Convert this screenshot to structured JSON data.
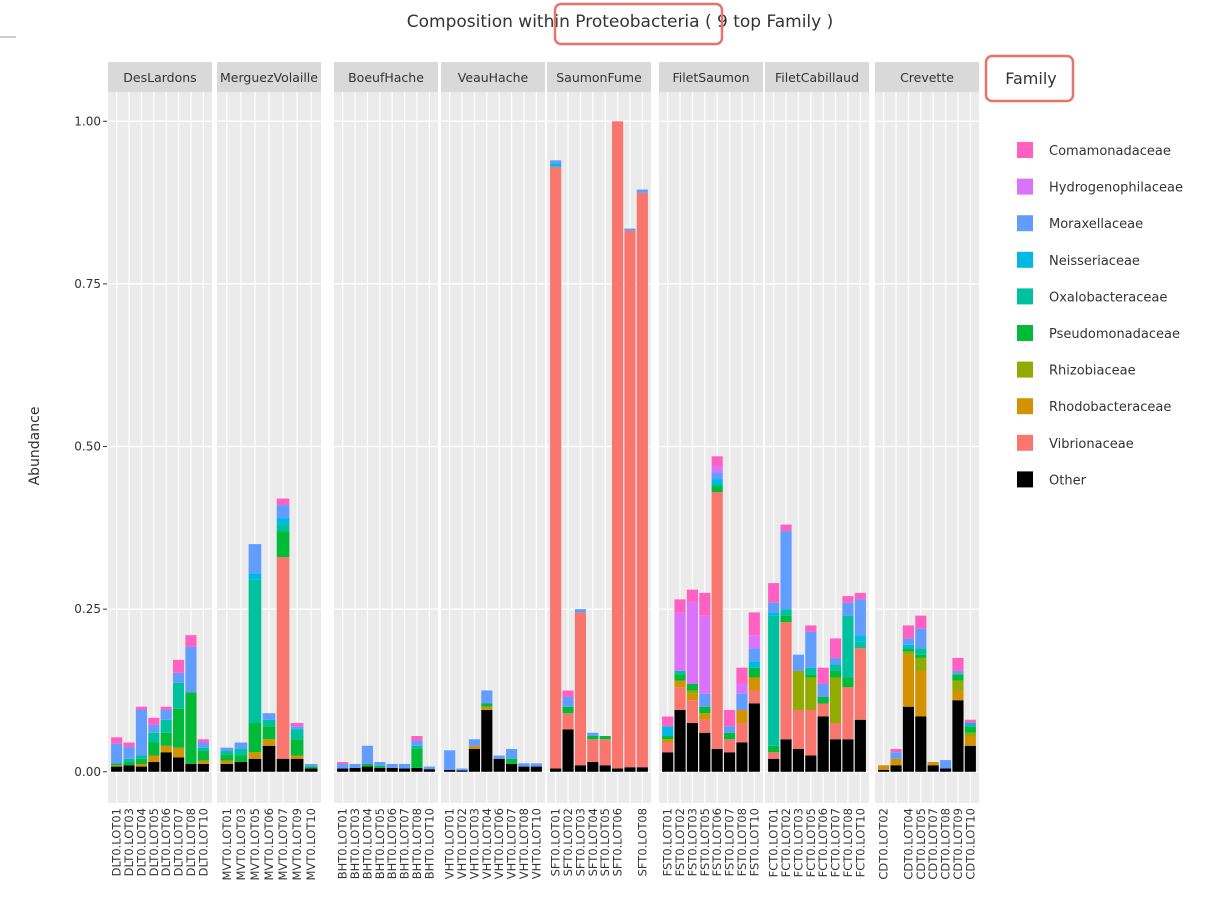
{
  "chart_data": {
    "type": "bar",
    "stacked": true,
    "title": "Composition within Proteobacteria ( 9 top Family )",
    "ylabel": "Abundance",
    "legend_title": "Family",
    "ylim": [
      -0.048,
      1.045
    ],
    "yticks": [
      {
        "value": 0,
        "label": "0.00"
      },
      {
        "value": 0.25,
        "label": "0.25"
      },
      {
        "value": 0.5,
        "label": "0.50"
      },
      {
        "value": 0.75,
        "label": "0.75"
      },
      {
        "value": 1,
        "label": "1.00"
      }
    ],
    "grid": true,
    "facets": [
      {
        "title": "DesLardons",
        "categories": [
          "DLT0.LOT01",
          "DLT0.LOT03",
          "DLT0.LOT04",
          "DLT0.LOT05",
          "DLT0.LOT06",
          "DLT0.LOT07",
          "DLT0.LOT08",
          "DLT0.LOT10"
        ]
      },
      {
        "title": "MerguezVolaille",
        "categories": [
          "MVT0.LOT01",
          "MVT0.LOT03",
          "MVT0.LOT05",
          "MVT0.LOT06",
          "MVT0.LOT07",
          "MVT0.LOT09",
          "MVT0.LOT10"
        ]
      },
      {
        "title": "BoeufHache",
        "categories": [
          "BHT0.LOT01",
          "BHT0.LOT03",
          "BHT0.LOT04",
          "BHT0.LOT05",
          "BHT0.LOT06",
          "BHT0.LOT07",
          "BHT0.LOT08",
          "BHT0.LOT10"
        ]
      },
      {
        "title": "VeauHache",
        "categories": [
          "VHT0.LOT01",
          "VHT0.LOT02",
          "VHT0.LOT03",
          "VHT0.LOT04",
          "VHT0.LOT06",
          "VHT0.LOT07",
          "VHT0.LOT08",
          "VHT0.LOT10"
        ]
      },
      {
        "title": "SaumonFume",
        "categories": [
          "SFT0.LOT01",
          "SFT0.LOT02",
          "SFT0.LOT03",
          "SFT0.LOT04",
          "SFT0.LOT05",
          "SFT0.LOT06",
          null,
          "SFT0.LOT08"
        ]
      },
      {
        "title": "FiletSaumon",
        "categories": [
          "FST0.LOT01",
          "FST0.LOT02",
          "FST0.LOT03",
          "FST0.LOT05",
          "FST0.LOT06",
          "FST0.LOT07",
          "FST0.LOT08",
          "FST0.LOT10"
        ]
      },
      {
        "title": "FiletCabillaud",
        "categories": [
          "FCT0.LOT01",
          "FCT0.LOT02",
          "FCT0.LOT03",
          "FCT0.LOT05",
          "FCT0.LOT06",
          "FCT0.LOT07",
          "FCT0.LOT08",
          "FCT0.LOT10"
        ]
      },
      {
        "title": "Crevette",
        "categories": [
          "CDT0.LOT02",
          null,
          "CDT0.LOT04",
          "CDT0.LOT05",
          "CDT0.LOT07",
          "CDT0.LOT08",
          "CDT0.LOT09",
          "CDT0.LOT10"
        ]
      }
    ],
    "series": [
      {
        "name": "Comamonadaceae",
        "color": "#FF61C3",
        "values": [
          [
            0.01,
            0.007,
            0.005,
            0.011,
            0.005,
            0.02,
            0.018,
            0.005
          ],
          [
            0,
            0,
            0,
            0,
            0.01,
            0.005,
            0
          ],
          [
            0.003,
            0,
            0,
            0,
            0,
            0,
            0.007,
            0
          ],
          [
            0,
            0,
            0,
            0,
            0,
            0,
            0,
            0
          ],
          [
            0,
            0.01,
            0,
            0,
            0,
            0,
            0,
            0
          ],
          [
            0.015,
            0.02,
            0.02,
            0.035,
            0.015,
            0.025,
            0.025,
            0.035
          ],
          [
            0.03,
            0.01,
            0,
            0.01,
            0.025,
            0.03,
            0.01,
            0.01
          ],
          [
            0,
            0.005,
            0.02,
            0.02,
            0,
            0,
            0.02,
            0.005
          ]
        ]
      },
      {
        "name": "Hydrogenophilaceae",
        "color": "#DB72FB",
        "values": [
          [
            0,
            0,
            0,
            0,
            0,
            0,
            0,
            0
          ],
          [
            0,
            0,
            0,
            0,
            0,
            0,
            0
          ],
          [
            0,
            0,
            0,
            0,
            0,
            0,
            0,
            0
          ],
          [
            0,
            0,
            0,
            0,
            0,
            0,
            0,
            0
          ],
          [
            0,
            0,
            0,
            0,
            0,
            0,
            0,
            0
          ],
          [
            0,
            0.09,
            0.125,
            0.12,
            0.01,
            0,
            0.015,
            0.02
          ],
          [
            0,
            0,
            0,
            0,
            0,
            0,
            0,
            0
          ],
          [
            0,
            0,
            0,
            0,
            0,
            0,
            0,
            0
          ]
        ]
      },
      {
        "name": "Moraxellaceae",
        "color": "#619CFF",
        "values": [
          [
            0.03,
            0.018,
            0.07,
            0.012,
            0.015,
            0.015,
            0.07,
            0.008
          ],
          [
            0.005,
            0.01,
            0.045,
            0.01,
            0.02,
            0.005,
            0.004
          ],
          [
            0.007,
            0.006,
            0.028,
            0.006,
            0.006,
            0.007,
            0.008,
            0.004
          ],
          [
            0.03,
            0.003,
            0.01,
            0.02,
            0.005,
            0.015,
            0.005,
            0.005
          ],
          [
            0.005,
            0.015,
            0.005,
            0.005,
            0,
            0,
            0.003,
            0.005
          ],
          [
            0,
            0,
            0,
            0.02,
            0.01,
            0.01,
            0.025,
            0.02
          ],
          [
            0.015,
            0.12,
            0.025,
            0.055,
            0.02,
            0.01,
            0.02,
            0.055
          ],
          [
            0,
            0.01,
            0.01,
            0.03,
            0,
            0.013,
            0.005,
            0
          ]
        ]
      },
      {
        "name": "Neisseriaceae",
        "color": "#00B9E3",
        "values": [
          [
            0,
            0,
            0,
            0,
            0,
            0,
            0,
            0
          ],
          [
            0,
            0,
            0.01,
            0,
            0.01,
            0,
            0
          ],
          [
            0,
            0,
            0,
            0,
            0,
            0,
            0,
            0
          ],
          [
            0,
            0,
            0,
            0,
            0,
            0,
            0,
            0
          ],
          [
            0.005,
            0,
            0,
            0,
            0,
            0,
            0,
            0
          ],
          [
            0.015,
            0,
            0,
            0,
            0.01,
            0,
            0,
            0.01
          ],
          [
            0.005,
            0,
            0,
            0,
            0,
            0,
            0,
            0.01
          ],
          [
            0,
            0,
            0.005,
            0,
            0,
            0,
            0,
            0.005
          ]
        ]
      },
      {
        "name": "Oxalobacteraceae",
        "color": "#00C19F",
        "values": [
          [
            0,
            0.005,
            0.005,
            0.015,
            0.02,
            0.04,
            0,
            0.005
          ],
          [
            0.005,
            0.01,
            0.22,
            0.01,
            0.01,
            0.015,
            0
          ],
          [
            0,
            0,
            0,
            0,
            0,
            0,
            0.004,
            0
          ],
          [
            0,
            0,
            0,
            0,
            0,
            0,
            0,
            0
          ],
          [
            0,
            0,
            0,
            0,
            0,
            0,
            0,
            0
          ],
          [
            0,
            0.005,
            0,
            0,
            0,
            0,
            0,
            0
          ],
          [
            0.2,
            0.01,
            0,
            0.01,
            0,
            0.01,
            0.095,
            0.01
          ],
          [
            0,
            0,
            0,
            0.01,
            0,
            0,
            0,
            0
          ]
        ]
      },
      {
        "name": "Pseudomonadaceae",
        "color": "#00BA38",
        "values": [
          [
            0.003,
            0.005,
            0.008,
            0.02,
            0.02,
            0.06,
            0.11,
            0.015
          ],
          [
            0.01,
            0.01,
            0.045,
            0.02,
            0.04,
            0.025,
            0.003
          ],
          [
            0,
            0,
            0.004,
            0.003,
            0,
            0,
            0.03,
            0
          ],
          [
            0,
            0,
            0,
            0.005,
            0,
            0.008,
            0,
            0
          ],
          [
            0,
            0.01,
            0,
            0.005,
            0.005,
            0,
            0,
            0
          ],
          [
            0.005,
            0.01,
            0.01,
            0.01,
            0.01,
            0.01,
            0,
            0.015
          ],
          [
            0.01,
            0.01,
            0,
            0.005,
            0.01,
            0.01,
            0.015,
            0
          ],
          [
            0,
            0,
            0.005,
            0.005,
            0,
            0,
            0.01,
            0.01
          ]
        ]
      },
      {
        "name": "Rhizobiaceae",
        "color": "#93AA00",
        "values": [
          [
            0,
            0,
            0,
            0,
            0,
            0,
            0,
            0
          ],
          [
            0,
            0,
            0,
            0,
            0,
            0,
            0
          ],
          [
            0,
            0,
            0,
            0,
            0,
            0,
            0,
            0
          ],
          [
            0,
            0,
            0,
            0,
            0,
            0,
            0,
            0
          ],
          [
            0,
            0,
            0,
            0,
            0,
            0,
            0,
            0
          ],
          [
            0,
            0,
            0.005,
            0,
            0,
            0,
            0,
            0
          ],
          [
            0,
            0,
            0.06,
            0.05,
            0,
            0.07,
            0,
            0
          ],
          [
            0,
            0,
            0.005,
            0.02,
            0,
            0,
            0.015,
            0.005
          ]
        ]
      },
      {
        "name": "Rhodobacteraceae",
        "color": "#D39200",
        "values": [
          [
            0.002,
            0,
            0.004,
            0.01,
            0.01,
            0.015,
            0,
            0.005
          ],
          [
            0.005,
            0,
            0.01,
            0.01,
            0,
            0.005,
            0
          ],
          [
            0,
            0,
            0,
            0,
            0,
            0,
            0,
            0
          ],
          [
            0,
            0,
            0.005,
            0.005,
            0,
            0,
            0,
            0
          ],
          [
            0,
            0,
            0,
            0,
            0,
            0,
            0,
            0
          ],
          [
            0.005,
            0.01,
            0.01,
            0.01,
            0,
            0,
            0.02,
            0.02
          ],
          [
            0,
            0,
            0,
            0,
            0,
            0,
            0,
            0
          ],
          [
            0.007,
            0.01,
            0.08,
            0.07,
            0.005,
            0,
            0.015,
            0.015
          ]
        ]
      },
      {
        "name": "Vibrionaceae",
        "color": "#F8766D",
        "values": [
          [
            0,
            0,
            0,
            0,
            0,
            0,
            0,
            0
          ],
          [
            0,
            0,
            0,
            0,
            0.31,
            0,
            0
          ],
          [
            0,
            0,
            0,
            0,
            0,
            0,
            0,
            0
          ],
          [
            0,
            0,
            0,
            0,
            0,
            0,
            0,
            0
          ],
          [
            0.925,
            0.025,
            0.235,
            0.035,
            0.04,
            0.995,
            0.825,
            0.883
          ],
          [
            0.015,
            0.035,
            0.035,
            0.02,
            0.395,
            0.02,
            0.03,
            0.02
          ],
          [
            0.01,
            0.18,
            0.06,
            0.07,
            0.02,
            0.025,
            0.08,
            0.11
          ],
          [
            0,
            0,
            0,
            0,
            0,
            0,
            0,
            0
          ]
        ]
      },
      {
        "name": "Other",
        "color": "#000000",
        "values": [
          [
            0.008,
            0.01,
            0.008,
            0.015,
            0.03,
            0.022,
            0.012,
            0.012
          ],
          [
            0.012,
            0.015,
            0.02,
            0.04,
            0.02,
            0.02,
            0.005
          ],
          [
            0.005,
            0.006,
            0.008,
            0.006,
            0.006,
            0.005,
            0.006,
            0.004
          ],
          [
            0.003,
            0.002,
            0.035,
            0.095,
            0.02,
            0.012,
            0.008,
            0.008
          ],
          [
            0.005,
            0.065,
            0.01,
            0.015,
            0.01,
            0.005,
            0.007,
            0.007
          ],
          [
            0.03,
            0.095,
            0.075,
            0.06,
            0.035,
            0.03,
            0.045,
            0.105
          ],
          [
            0.02,
            0.05,
            0.035,
            0.025,
            0.085,
            0.05,
            0.05,
            0.08
          ],
          [
            0.003,
            0.01,
            0.1,
            0.085,
            0.01,
            0.005,
            0.11,
            0.04
          ]
        ]
      }
    ]
  }
}
